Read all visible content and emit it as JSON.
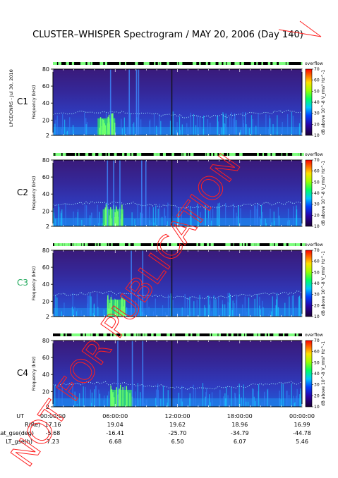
{
  "title": "CLUSTER–WHISPER Spectrogram / MAY 20, 2006 (Day 140)",
  "side_stamp": "LPCE/CNRS - Jul 30, 2010",
  "watermark": "NOT FOR PUBLICATION",
  "chart_data": [
    {
      "type": "heatmap",
      "panel": "C1",
      "ylabel": "Frequency (kHz)",
      "ylim": [
        2,
        80
      ],
      "ytick_labels": [
        "2",
        "20",
        "40",
        "60",
        "80"
      ],
      "colorbar_label": "dB above 10^-8 V_rms² Hz^-1",
      "colorbar_range": [
        10,
        70
      ],
      "colorbar_ticks": [
        "10",
        "20",
        "30",
        "40",
        "50",
        "60",
        "70"
      ],
      "quality_bar_label": "overflow",
      "label_color": "#000000",
      "green_burst_hours": [
        4.3,
        6.0
      ],
      "spike_hours": [
        5.5,
        7.3,
        8.0,
        8.2,
        11.4
      ]
    },
    {
      "type": "heatmap",
      "panel": "C2",
      "ylabel": "Frequency (kHz)",
      "ylim": [
        2,
        80
      ],
      "ytick_labels": [
        "2",
        "20",
        "40",
        "60",
        "80"
      ],
      "colorbar_label": "dB above 10^-8 V_rms² Hz^-1",
      "colorbar_range": [
        10,
        70
      ],
      "colorbar_ticks": [
        "10",
        "20",
        "30",
        "40",
        "50",
        "60",
        "70"
      ],
      "quality_bar_label": "overflow",
      "label_color": "#000000",
      "green_burst_hours": [
        4.8,
        6.8
      ],
      "spike_hours": [
        5.2,
        5.8,
        6.4,
        8.5,
        8.9,
        11.4
      ]
    },
    {
      "type": "heatmap",
      "panel": "C3",
      "ylabel": "Frequency (kHz)",
      "ylim": [
        2,
        80
      ],
      "ytick_labels": [
        "2",
        "20",
        "40",
        "60",
        "80"
      ],
      "colorbar_label": "dB above 10^-8 V_rms² Hz^-1",
      "colorbar_range": [
        10,
        70
      ],
      "colorbar_ticks": [
        "10",
        "20",
        "30",
        "40",
        "50",
        "60",
        "70"
      ],
      "quality_bar_label": "overflow",
      "label_color": "#1fa85a",
      "green_burst_hours": [
        5.2,
        7.0
      ],
      "spike_hours": [
        7.5,
        8.6,
        11.4
      ]
    },
    {
      "type": "heatmap",
      "panel": "C4",
      "ylabel": "Frequency (kHz)",
      "ylim": [
        2,
        80
      ],
      "ytick_labels": [
        "2",
        "20",
        "40",
        "60",
        "80"
      ],
      "colorbar_label": "dB above 10^-8 V_rms² Hz^-1",
      "colorbar_range": [
        10,
        70
      ],
      "colorbar_ticks": [
        "10",
        "20",
        "30",
        "40",
        "50",
        "60",
        "70"
      ],
      "quality_bar_label": "overflow",
      "label_color": "#000000",
      "green_burst_hours": [
        5.5,
        7.6
      ],
      "spike_hours": [
        6.2,
        7.6,
        8.6,
        11.4
      ]
    }
  ],
  "x_axis": {
    "ticks": [
      "00:00:00",
      "06:00:00",
      "12:00:00",
      "18:00:00",
      "00:00:00"
    ]
  },
  "ephemeris": [
    {
      "label": "UT",
      "values": [
        "00:00:00",
        "06:00:00",
        "12:00:00",
        "18:00:00",
        "00:00:00"
      ]
    },
    {
      "label": "R(Re)",
      "values": [
        "17.16",
        "19.04",
        "19.62",
        "18.96",
        "16.99"
      ]
    },
    {
      "label": "Lat_gse(deg)",
      "values": [
        "-5.68",
        "-16.41",
        "-25.70",
        "-34.79",
        "-44.78"
      ]
    },
    {
      "label": "LT_gse(h)",
      "values": [
        "7.23",
        "6.68",
        "6.50",
        "6.07",
        "5.46"
      ]
    }
  ]
}
